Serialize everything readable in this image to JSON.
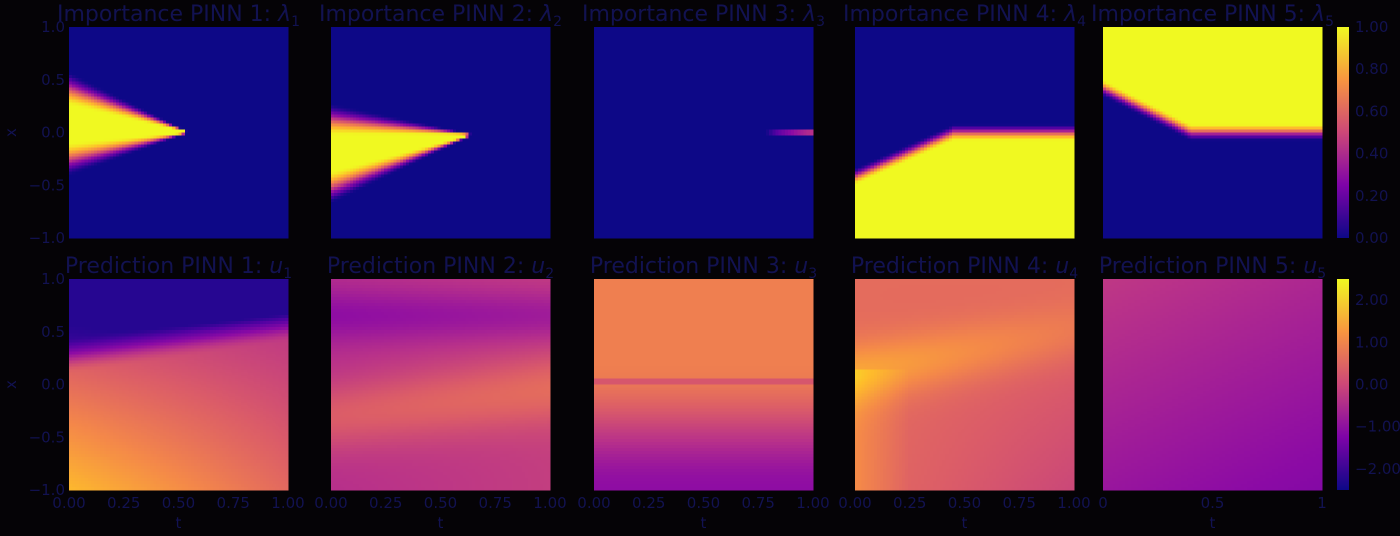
{
  "chart_data": {
    "type": "heatmap",
    "colormap": "plasma",
    "background": "#050306",
    "text_color": "#121251",
    "axes": [
      {
        "title": "Importance PINN 1: ",
        "symbol": "λ",
        "sub": "1",
        "field": "imp1",
        "ylabel": "x",
        "xlabel": "",
        "yticks": [
          "1.0",
          "0.5",
          "0.0",
          "−0.5",
          "−1.0"
        ],
        "xticks": []
      },
      {
        "title": "Importance PINN 2: ",
        "symbol": "λ",
        "sub": "2",
        "field": "imp2",
        "ylabel": "",
        "xlabel": "",
        "yticks": [],
        "xticks": []
      },
      {
        "title": "Importance PINN 3: ",
        "symbol": "λ",
        "sub": "3",
        "field": "imp3",
        "ylabel": "",
        "xlabel": "",
        "yticks": [],
        "xticks": []
      },
      {
        "title": "Importance PINN 4: ",
        "symbol": "λ",
        "sub": "4",
        "field": "imp4",
        "ylabel": "",
        "xlabel": "",
        "yticks": [],
        "xticks": []
      },
      {
        "title": "Importance PINN 5: ",
        "symbol": "λ",
        "sub": "5",
        "field": "imp5",
        "ylabel": "",
        "xlabel": "",
        "yticks": [],
        "xticks": []
      },
      {
        "title": "Prediction PINN 1: ",
        "symbol": "u",
        "sub": "1",
        "field": "pred1",
        "ylabel": "x",
        "xlabel": "t",
        "yticks": [
          "1.0",
          "0.5",
          "0.0",
          "−0.5",
          "−1.0"
        ],
        "xticks": [
          "0.00",
          "0.25",
          "0.50",
          "0.75",
          "1.00"
        ]
      },
      {
        "title": "Prediction PINN 2: ",
        "symbol": "u",
        "sub": "2",
        "field": "pred2",
        "ylabel": "",
        "xlabel": "t",
        "yticks": [],
        "xticks": [
          "0.00",
          "0.25",
          "0.50",
          "0.75",
          "1.00"
        ]
      },
      {
        "title": "Prediction PINN 3: ",
        "symbol": "u",
        "sub": "3",
        "field": "pred3",
        "ylabel": "",
        "xlabel": "t",
        "yticks": [],
        "xticks": [
          "0.00",
          "0.25",
          "0.50",
          "0.75",
          "1.00"
        ]
      },
      {
        "title": "Prediction PINN 4: ",
        "symbol": "u",
        "sub": "4",
        "field": "pred4",
        "ylabel": "",
        "xlabel": "t",
        "yticks": [],
        "xticks": [
          "0.00",
          "0.25",
          "0.50",
          "0.75",
          "1.00"
        ]
      },
      {
        "title": "Prediction PINN 5: ",
        "symbol": "u",
        "sub": "5",
        "field": "pred5",
        "ylabel": "",
        "xlabel": "t",
        "yticks": [],
        "xticks": [
          "0",
          "0.5",
          "1"
        ]
      }
    ],
    "x_range": [
      0,
      1
    ],
    "y_range": [
      -1,
      1
    ],
    "colorbars": [
      {
        "row": "importance",
        "range": [
          0,
          1
        ],
        "ticks": [
          "1.00",
          "0.80",
          "0.60",
          "0.40",
          "0.20",
          "0.00"
        ]
      },
      {
        "row": "prediction",
        "range": [
          -2.5,
          2.5
        ],
        "ticks": [
          "2.00",
          "1.00",
          "0.00",
          "−1.00",
          "−2.00"
        ]
      }
    ]
  }
}
